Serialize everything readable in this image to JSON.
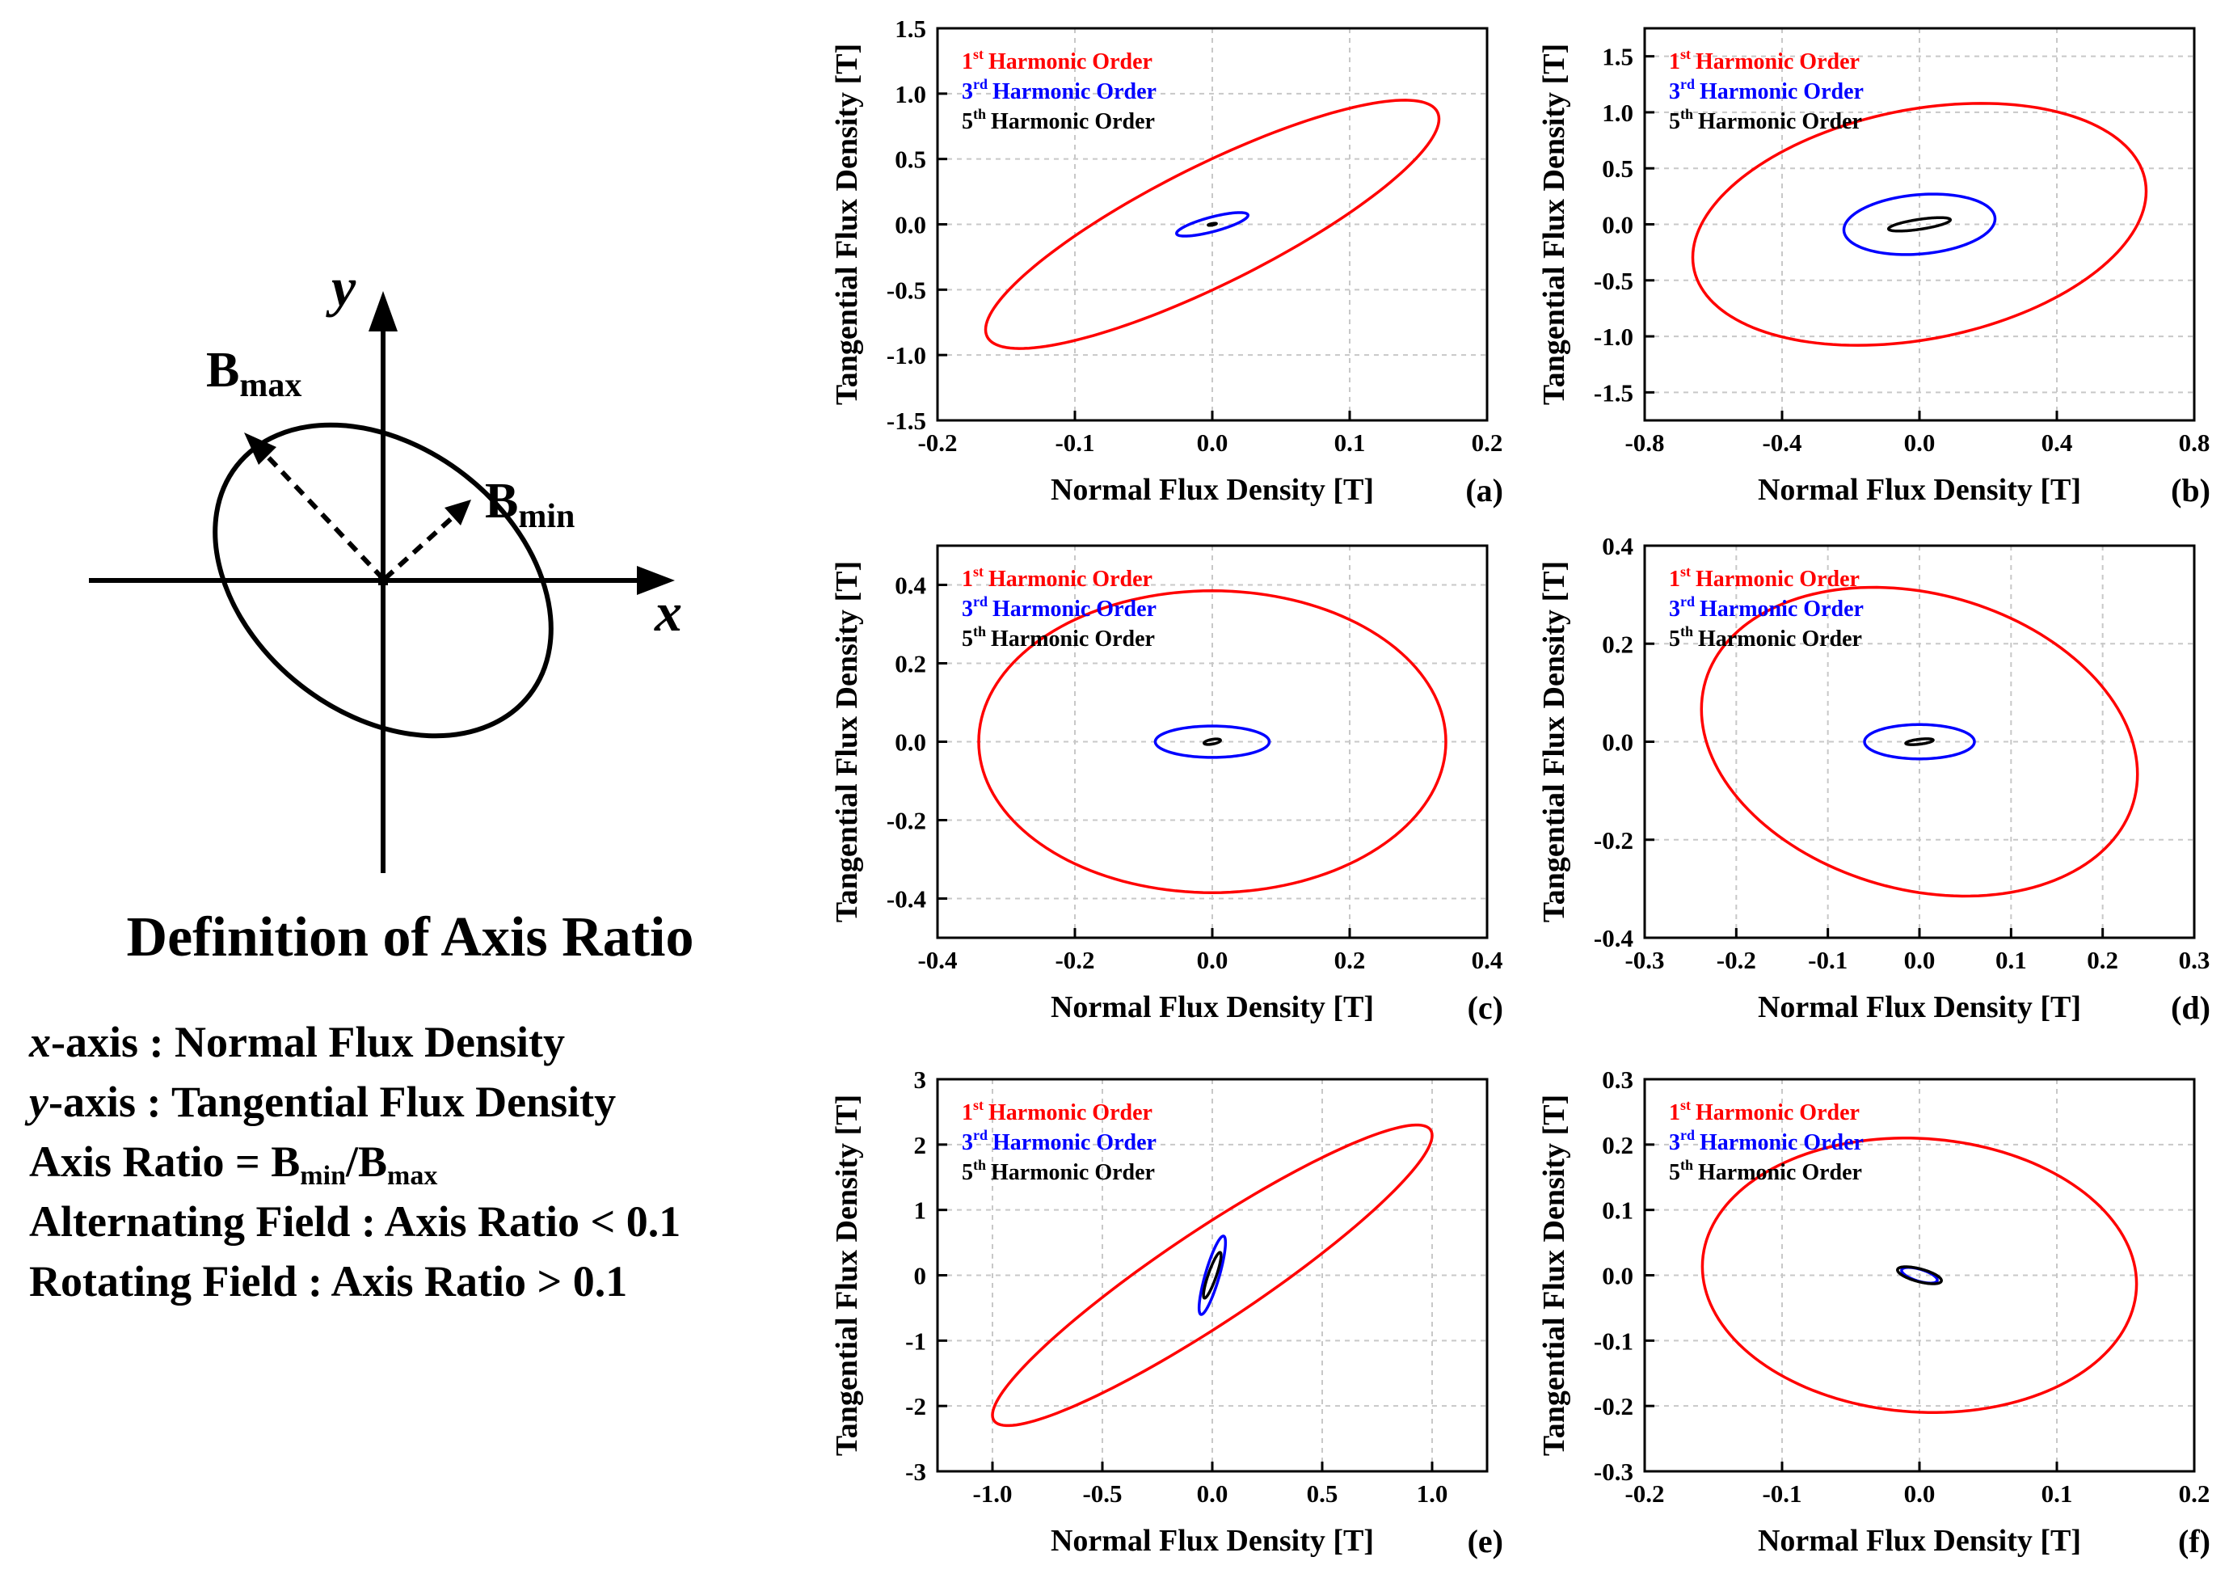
{
  "definition": {
    "title": "Definition of Axis Ratio",
    "diagram": {
      "y_label": "y",
      "x_label": "x",
      "bmax_label": "B",
      "bmax_sub": "max",
      "bmin_label": "B",
      "bmin_sub": "min"
    },
    "lines": {
      "x_axis_var": "x",
      "x_axis_text": "-axis : Normal Flux Density",
      "y_axis_var": "y",
      "y_axis_text": "-axis : Tangential Flux Density",
      "ratio_prefix": "Axis Ratio = B",
      "ratio_sub1": "min",
      "ratio_mid": "/B",
      "ratio_sub2": "max",
      "alternating": "Alternating Field : Axis Ratio < 0.1",
      "rotating": "Rotating Field : Axis Ratio > 0.1"
    }
  },
  "colors": {
    "h1": "#ff0000",
    "h3": "#0000ff",
    "h5": "#000000",
    "grid": "#c8c8c8"
  },
  "chart_data": [
    {
      "type": "line",
      "label": "(a)",
      "xlabel": "Normal Flux Density [T]",
      "ylabel": "Tangential Flux Density [T]",
      "xlim": [
        -0.2,
        0.2
      ],
      "ylim": [
        -1.5,
        1.5
      ],
      "xticks": [
        "-0.2",
        "-0.1",
        "0.0",
        "0.1",
        "0.2"
      ],
      "xtick_values": [
        -0.2,
        -0.1,
        0,
        0.1,
        0.2
      ],
      "yticks": [
        "-1.5",
        "-1.0",
        "-0.5",
        "0.0",
        "0.5",
        "1.0",
        "1.5"
      ],
      "ytick_values": [
        -1.5,
        -1,
        -0.5,
        0,
        0.5,
        1,
        1.5
      ],
      "legend": [
        {
          "sup": "st",
          "text": "Harmonic Order",
          "num": "1"
        },
        {
          "sup": "rd",
          "text": "Harmonic Order",
          "num": "3"
        },
        {
          "sup": "th",
          "text": "Harmonic Order",
          "num": "5"
        }
      ],
      "series": [
        {
          "name": "1st Harmonic Order",
          "ellipse": {
            "cx": 0.0,
            "cy": 0.0,
            "x_extent": 0.165,
            "y_extent": 0.95,
            "x_at_ymax": 0.14
          }
        },
        {
          "name": "3rd Harmonic Order",
          "ellipse": {
            "cx": 0.0,
            "cy": 0.0,
            "x_extent": 0.026,
            "y_extent": 0.09,
            "x_at_ymax": 0.02
          }
        },
        {
          "name": "5th Harmonic Order",
          "ellipse": {
            "cx": 0.0,
            "cy": 0.0,
            "x_extent": 0.003,
            "y_extent": 0.008,
            "x_at_ymax": 0.002
          }
        }
      ]
    },
    {
      "type": "line",
      "label": "(b)",
      "xlabel": "Normal Flux Density [T]",
      "ylabel": "Tangential Flux Density [T]",
      "xlim": [
        -0.8,
        0.8
      ],
      "ylim": [
        -1.75,
        1.75
      ],
      "xticks": [
        "-0.8",
        "-0.4",
        "0.0",
        "0.4",
        "0.8"
      ],
      "xtick_values": [
        -0.8,
        -0.4,
        0,
        0.4,
        0.8
      ],
      "yticks": [
        "-1.5",
        "-1.0",
        "-0.5",
        "0.0",
        "0.5",
        "1.0",
        "1.5"
      ],
      "ytick_values": [
        -1.5,
        -1,
        -0.5,
        0,
        0.5,
        1,
        1.5
      ],
      "legend": [
        {
          "sup": "st",
          "text": "Harmonic Order",
          "num": "1"
        },
        {
          "sup": "rd",
          "text": "Harmonic Order",
          "num": "3"
        },
        {
          "sup": "th",
          "text": "Harmonic Order",
          "num": "5"
        }
      ],
      "series": [
        {
          "name": "1st Harmonic Order",
          "ellipse": {
            "cx": 0.0,
            "cy": 0.0,
            "x_extent": 0.66,
            "y_extent": 1.08,
            "x_at_ymax": 0.18
          }
        },
        {
          "name": "3rd Harmonic Order",
          "ellipse": {
            "cx": 0.0,
            "cy": 0.0,
            "x_extent": 0.22,
            "y_extent": 0.27,
            "x_at_ymax": 0.04
          }
        },
        {
          "name": "5th Harmonic Order",
          "ellipse": {
            "cx": 0.0,
            "cy": 0.0,
            "x_extent": 0.09,
            "y_extent": 0.06,
            "x_at_ymax": 0.06
          }
        }
      ]
    },
    {
      "type": "line",
      "label": "(c)",
      "xlabel": "Normal Flux Density [T]",
      "ylabel": "Tangential Flux Density [T]",
      "xlim": [
        -0.4,
        0.4
      ],
      "ylim": [
        -0.5,
        0.5
      ],
      "xticks": [
        "-0.4",
        "-0.2",
        "0.0",
        "0.2",
        "0.4"
      ],
      "xtick_values": [
        -0.4,
        -0.2,
        0,
        0.2,
        0.4
      ],
      "yticks": [
        "-0.4",
        "-0.2",
        "0.0",
        "0.2",
        "0.4"
      ],
      "ytick_values": [
        -0.4,
        -0.2,
        0,
        0.2,
        0.4
      ],
      "legend": [
        {
          "sup": "st",
          "text": "Harmonic Order",
          "num": "1"
        },
        {
          "sup": "rd",
          "text": "Harmonic Order",
          "num": "3"
        },
        {
          "sup": "th",
          "text": "Harmonic Order",
          "num": "5"
        }
      ],
      "series": [
        {
          "name": "1st Harmonic Order",
          "ellipse": {
            "cx": 0.0,
            "cy": 0.0,
            "x_extent": 0.34,
            "y_extent": 0.385,
            "x_at_ymax": 0.0
          }
        },
        {
          "name": "3rd Harmonic Order",
          "ellipse": {
            "cx": 0.0,
            "cy": 0.0,
            "x_extent": 0.083,
            "y_extent": 0.04,
            "x_at_ymax": 0.0
          }
        },
        {
          "name": "5th Harmonic Order",
          "ellipse": {
            "cx": 0.0,
            "cy": 0.0,
            "x_extent": 0.012,
            "y_extent": 0.007,
            "x_at_ymax": 0.006
          }
        }
      ]
    },
    {
      "type": "line",
      "label": "(d)",
      "xlabel": "Normal Flux Density [T]",
      "ylabel": "Tangential Flux Density [T]",
      "xlim": [
        -0.3,
        0.3
      ],
      "ylim": [
        -0.4,
        0.4
      ],
      "xticks": [
        "-0.3",
        "-0.2",
        "-0.1",
        "0.0",
        "0.1",
        "0.2",
        "0.3"
      ],
      "xtick_values": [
        -0.3,
        -0.2,
        -0.1,
        0,
        0.1,
        0.2,
        0.3
      ],
      "yticks": [
        "-0.4",
        "-0.2",
        "0.0",
        "0.2",
        "0.4"
      ],
      "ytick_values": [
        -0.4,
        -0.2,
        0,
        0.2,
        0.4
      ],
      "legend": [
        {
          "sup": "st",
          "text": "Harmonic Order",
          "num": "1"
        },
        {
          "sup": "rd",
          "text": "Harmonic Order",
          "num": "3"
        },
        {
          "sup": "th",
          "text": "Harmonic Order",
          "num": "5"
        }
      ],
      "series": [
        {
          "name": "1st Harmonic Order",
          "ellipse": {
            "cx": 0.0,
            "cy": 0.0,
            "x_extent": 0.238,
            "y_extent": 0.315,
            "x_at_ymax": -0.05
          }
        },
        {
          "name": "3rd Harmonic Order",
          "ellipse": {
            "cx": 0.0,
            "cy": 0.0,
            "x_extent": 0.06,
            "y_extent": 0.035,
            "x_at_ymax": 0.0
          }
        },
        {
          "name": "5th Harmonic Order",
          "ellipse": {
            "cx": 0.0,
            "cy": 0.0,
            "x_extent": 0.015,
            "y_extent": 0.006,
            "x_at_ymax": 0.008
          }
        }
      ]
    },
    {
      "type": "line",
      "label": "(e)",
      "xlabel": "Normal Flux Density [T]",
      "ylabel": "Tangential Flux Density [T]",
      "xlim": [
        -1.25,
        1.25
      ],
      "ylim": [
        -3,
        3
      ],
      "xticks": [
        "-1.0",
        "-0.5",
        "0.0",
        "0.5",
        "1.0"
      ],
      "xtick_values": [
        -1,
        -0.5,
        0,
        0.5,
        1
      ],
      "yticks": [
        "-3",
        "-2",
        "-1",
        "0",
        "1",
        "2",
        "3"
      ],
      "ytick_values": [
        -3,
        -2,
        -1,
        0,
        1,
        2,
        3
      ],
      "legend": [
        {
          "sup": "st",
          "text": "Harmonic Order",
          "num": "1"
        },
        {
          "sup": "rd",
          "text": "Harmonic Order",
          "num": "3"
        },
        {
          "sup": "th",
          "text": "Harmonic Order",
          "num": "5"
        }
      ],
      "series": [
        {
          "name": "1st Harmonic Order",
          "ellipse": {
            "cx": 0.0,
            "cy": 0.0,
            "x_extent": 1.0,
            "y_extent": 2.3,
            "x_at_ymax": 0.93
          }
        },
        {
          "name": "3rd Harmonic Order",
          "ellipse": {
            "cx": 0.0,
            "cy": 0.0,
            "x_extent": 0.06,
            "y_extent": 0.6,
            "x_at_ymax": 0.05
          }
        },
        {
          "name": "5th Harmonic Order",
          "ellipse": {
            "cx": 0.0,
            "cy": 0.0,
            "x_extent": 0.04,
            "y_extent": 0.35,
            "x_at_ymax": 0.035
          }
        }
      ]
    },
    {
      "type": "line",
      "label": "(f)",
      "xlabel": "Normal Flux Density [T]",
      "ylabel": "Tangential Flux Density [T]",
      "xlim": [
        -0.2,
        0.2
      ],
      "ylim": [
        -0.3,
        0.3
      ],
      "xticks": [
        "-0.2",
        "-0.1",
        "0.0",
        "0.1",
        "0.2"
      ],
      "xtick_values": [
        -0.2,
        -0.1,
        0,
        0.1,
        0.2
      ],
      "yticks": [
        "-0.3",
        "-0.2",
        "-0.1",
        "0.0",
        "0.1",
        "0.2",
        "0.3"
      ],
      "ytick_values": [
        -0.3,
        -0.2,
        -0.1,
        0,
        0.1,
        0.2,
        0.3
      ],
      "legend": [
        {
          "sup": "st",
          "text": "Harmonic Order",
          "num": "1"
        },
        {
          "sup": "rd",
          "text": "Harmonic Order",
          "num": "3"
        },
        {
          "sup": "th",
          "text": "Harmonic Order",
          "num": "5"
        }
      ],
      "series": [
        {
          "name": "1st Harmonic Order",
          "ellipse": {
            "cx": 0.0,
            "cy": 0.0,
            "x_extent": 0.158,
            "y_extent": 0.21,
            "x_at_ymax": -0.01
          }
        },
        {
          "name": "3rd Harmonic Order",
          "ellipse": {
            "cx": 0.0,
            "cy": 0.0,
            "x_extent": 0.013,
            "y_extent": 0.012,
            "x_at_ymax": -0.008
          }
        },
        {
          "name": "5th Harmonic Order",
          "ellipse": {
            "cx": 0.0,
            "cy": 0.0,
            "x_extent": 0.016,
            "y_extent": 0.013,
            "x_at_ymax": -0.01
          }
        }
      ]
    }
  ]
}
